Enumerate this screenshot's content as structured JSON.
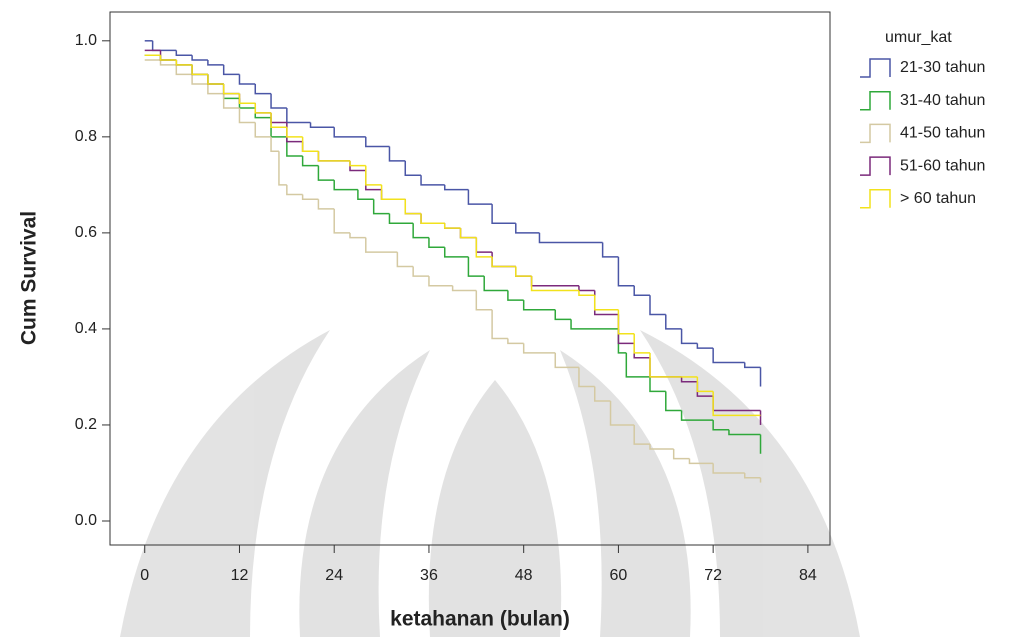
{
  "chart_data": {
    "type": "step",
    "x_label": "ketahanan (bulan)",
    "y_label": "Cum Survival",
    "legend_title": "umur_kat",
    "xlim": [
      -4.4,
      86.8
    ],
    "xticks": [
      0,
      12,
      24,
      36,
      48,
      60,
      72,
      84
    ],
    "ylim": [
      -0.05,
      1.06
    ],
    "yticks": [
      {
        "value": 0,
        "label": "0.0"
      },
      0.2,
      0.4,
      0.6,
      0.8,
      {
        "value": 1,
        "label": "1.0"
      }
    ],
    "legend": "right",
    "series": [
      {
        "name": "21-30 tahun",
        "color": "#4a56a6",
        "x": [
          0,
          1,
          4,
          6,
          8,
          10,
          12,
          14,
          16,
          18,
          21,
          24,
          28,
          31,
          33,
          35,
          38,
          41,
          44,
          47,
          50,
          58,
          60,
          62,
          64,
          66,
          68,
          70,
          72,
          76,
          78
        ],
        "values": [
          1.0,
          0.98,
          0.97,
          0.96,
          0.95,
          0.93,
          0.91,
          0.89,
          0.86,
          0.83,
          0.82,
          0.8,
          0.78,
          0.75,
          0.72,
          0.7,
          0.69,
          0.66,
          0.62,
          0.6,
          0.58,
          0.55,
          0.49,
          0.47,
          0.43,
          0.4,
          0.37,
          0.36,
          0.33,
          0.32,
          0.28
        ]
      },
      {
        "name": "31-40 tahun",
        "color": "#2fa83a",
        "x": [
          0,
          2,
          4,
          6,
          8,
          10,
          12,
          14,
          16,
          18,
          20,
          22,
          24,
          27,
          29,
          31,
          34,
          36,
          38,
          41,
          43,
          46,
          48,
          52,
          54,
          60,
          61,
          64,
          66,
          68,
          72,
          74,
          78
        ],
        "values": [
          0.97,
          0.96,
          0.95,
          0.93,
          0.91,
          0.88,
          0.86,
          0.84,
          0.8,
          0.76,
          0.74,
          0.71,
          0.69,
          0.67,
          0.64,
          0.62,
          0.59,
          0.57,
          0.55,
          0.51,
          0.48,
          0.46,
          0.44,
          0.42,
          0.4,
          0.35,
          0.3,
          0.27,
          0.23,
          0.21,
          0.19,
          0.18,
          0.14
        ]
      },
      {
        "name": "41-50 tahun",
        "color": "#d4c9a2",
        "x": [
          0,
          2,
          4,
          6,
          8,
          10,
          12,
          14,
          16,
          17,
          18,
          20,
          22,
          24,
          26,
          28,
          32,
          34,
          36,
          39,
          42,
          44,
          46,
          48,
          52,
          55,
          57,
          59,
          62,
          64,
          67,
          69,
          72,
          76,
          78
        ],
        "values": [
          0.96,
          0.95,
          0.93,
          0.91,
          0.89,
          0.86,
          0.83,
          0.8,
          0.77,
          0.7,
          0.68,
          0.67,
          0.65,
          0.6,
          0.59,
          0.56,
          0.53,
          0.51,
          0.49,
          0.48,
          0.44,
          0.38,
          0.37,
          0.35,
          0.32,
          0.28,
          0.25,
          0.2,
          0.16,
          0.15,
          0.13,
          0.12,
          0.1,
          0.09,
          0.08
        ]
      },
      {
        "name": "51-60 tahun",
        "color": "#7b2a7b",
        "x": [
          0,
          2,
          4,
          6,
          8,
          10,
          12,
          14,
          16,
          18,
          20,
          22,
          26,
          28,
          30,
          33,
          35,
          38,
          40,
          42,
          44,
          47,
          49,
          55,
          57,
          60,
          62,
          64,
          68,
          70,
          72,
          78
        ],
        "values": [
          0.98,
          0.96,
          0.95,
          0.93,
          0.91,
          0.89,
          0.87,
          0.85,
          0.83,
          0.79,
          0.77,
          0.75,
          0.73,
          0.69,
          0.67,
          0.64,
          0.62,
          0.61,
          0.59,
          0.56,
          0.53,
          0.51,
          0.49,
          0.48,
          0.43,
          0.37,
          0.34,
          0.3,
          0.29,
          0.26,
          0.23,
          0.2
        ]
      },
      {
        "name": "> 60 tahun",
        "color": "#f2e21c",
        "x": [
          0,
          2,
          4,
          6,
          8,
          10,
          12,
          14,
          16,
          18,
          20,
          22,
          26,
          28,
          30,
          33,
          35,
          38,
          40,
          42,
          44,
          47,
          49,
          55,
          57,
          60,
          62,
          64,
          68,
          70,
          72,
          78
        ],
        "values": [
          0.97,
          0.96,
          0.95,
          0.93,
          0.91,
          0.89,
          0.87,
          0.85,
          0.82,
          0.8,
          0.77,
          0.75,
          0.74,
          0.7,
          0.67,
          0.64,
          0.62,
          0.61,
          0.59,
          0.55,
          0.53,
          0.51,
          0.48,
          0.47,
          0.44,
          0.39,
          0.35,
          0.3,
          0.3,
          0.27,
          0.22,
          0.22
        ]
      }
    ]
  }
}
